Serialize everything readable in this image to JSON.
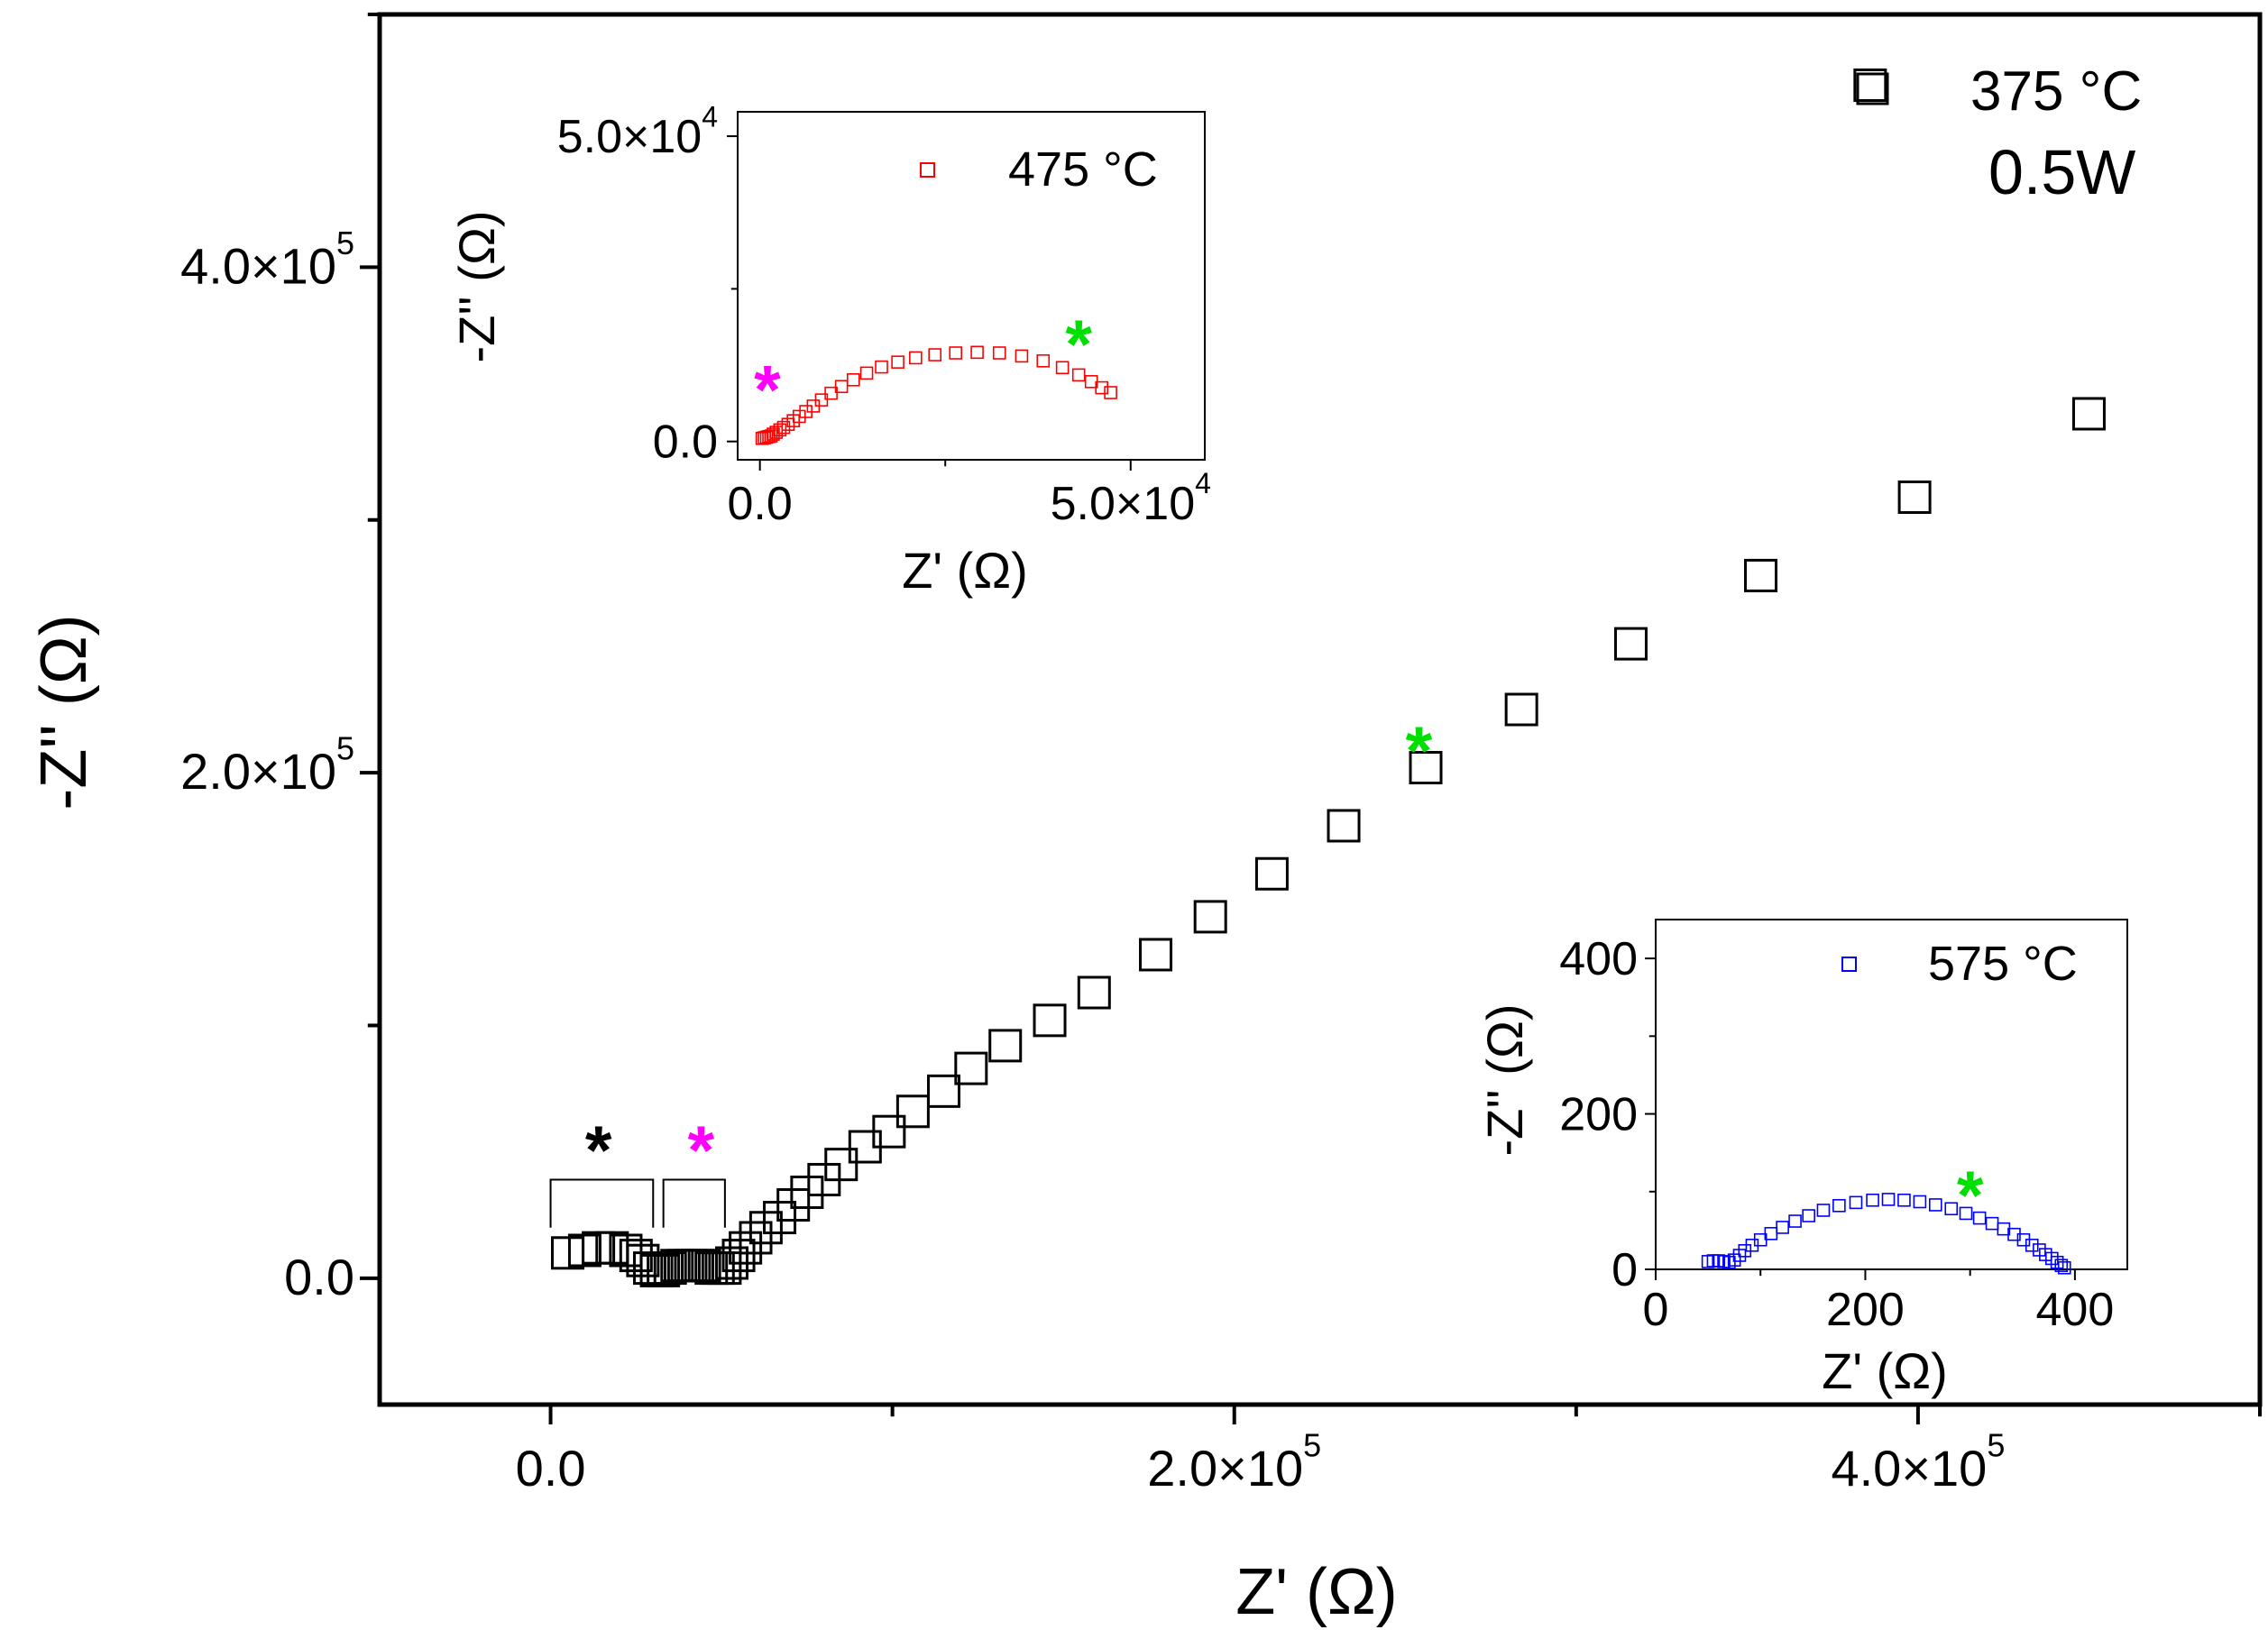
{
  "chart_data": [
    {
      "id": "main",
      "type": "scatter",
      "title": "",
      "xlabel": "Z' (Ω)",
      "ylabel": "-Z'' (Ω)",
      "xlim": [
        -50000,
        500000
      ],
      "ylim": [
        -50000,
        500000
      ],
      "xticks": [
        0,
        200000,
        400000
      ],
      "xtick_labels": [
        "0.0",
        "2.0×10",
        "4.0×10"
      ],
      "xtick_exps": [
        "",
        "5",
        "5"
      ],
      "yticks": [
        0,
        200000,
        400000
      ],
      "ytick_labels": [
        "0.0",
        "2.0×10",
        "4.0×10"
      ],
      "ytick_exps": [
        "",
        "5",
        "5"
      ],
      "legend": {
        "label": "375 °C",
        "sublabel": "0.5W",
        "position": "top-right"
      },
      "marker_color": "#000000",
      "series": [
        {
          "name": "375 °C",
          "points": [
            [
              5000,
              10000
            ],
            [
              10000,
              11000
            ],
            [
              14000,
              12000
            ],
            [
              18000,
              12000
            ],
            [
              22000,
              11000
            ],
            [
              25000,
              9000
            ],
            [
              27000,
              7000
            ],
            [
              29000,
              4000
            ],
            [
              31000,
              3000
            ],
            [
              33000,
              3000
            ],
            [
              35000,
              4000
            ],
            [
              37000,
              5000
            ],
            [
              39000,
              5000
            ],
            [
              41000,
              5000
            ],
            [
              43000,
              5000
            ],
            [
              45000,
              5000
            ],
            [
              47000,
              4000
            ],
            [
              49000,
              4000
            ],
            [
              51000,
              4000
            ],
            [
              53000,
              6000
            ],
            [
              55000,
              9000
            ],
            [
              57000,
              12000
            ],
            [
              60000,
              16000
            ],
            [
              63000,
              20000
            ],
            [
              67000,
              24000
            ],
            [
              71000,
              29000
            ],
            [
              75000,
              34000
            ],
            [
              80000,
              39000
            ],
            [
              85000,
              45000
            ],
            [
              92000,
              52000
            ],
            [
              99000,
              58000
            ],
            [
              106000,
              66000
            ],
            [
              115000,
              74000
            ],
            [
              123000,
              83000
            ],
            [
              133000,
              92000
            ],
            [
              146000,
              102000
            ],
            [
              159000,
              113000
            ],
            [
              177000,
              128000
            ],
            [
              193000,
              143000
            ],
            [
              211000,
              160000
            ],
            [
              232000,
              179000
            ],
            [
              256000,
              202000
            ],
            [
              284000,
              225000
            ],
            [
              316000,
              251000
            ],
            [
              354000,
              278000
            ],
            [
              399000,
              309000
            ],
            [
              450000,
              342000
            ],
            [
              386000,
              472000
            ]
          ]
        }
      ],
      "annotations": [
        {
          "text": "*",
          "color": "#000000",
          "x": 14000,
          "y": 52000
        },
        {
          "text": "*",
          "color": "#ff00ff",
          "x": 44000,
          "y": 52000
        },
        {
          "text": "*",
          "color": "#00e000",
          "x": 254000,
          "y": 210000
        }
      ],
      "brackets": [
        {
          "x0": 0,
          "x1": 30000,
          "y_top": 39000,
          "y_bottom": 20000
        },
        {
          "x0": 33000,
          "x1": 51000,
          "y_top": 39000,
          "y_bottom": 20000
        }
      ]
    },
    {
      "id": "inset-475",
      "type": "scatter",
      "xlabel": "Z' (Ω)",
      "ylabel": "-Z'' (Ω)",
      "xlim": [
        -3000,
        60000
      ],
      "ylim": [
        -3000,
        54000
      ],
      "xticks": [
        0,
        50000
      ],
      "xtick_labels": [
        "0.0",
        "5.0×10"
      ],
      "xtick_exps": [
        "",
        "4"
      ],
      "yticks": [
        0,
        50000
      ],
      "ytick_labels": [
        "0.0",
        "5.0×10"
      ],
      "ytick_exps": [
        "",
        "4"
      ],
      "legend": {
        "label": "475 °C",
        "position": "top-center"
      },
      "marker_color": "#ff0000",
      "series": [
        {
          "name": "475 °C",
          "points": [
            [
              300,
              500
            ],
            [
              600,
              600
            ],
            [
              900,
              700
            ],
            [
              1200,
              800
            ],
            [
              1500,
              900
            ],
            [
              1800,
              1200
            ],
            [
              2200,
              1500
            ],
            [
              2700,
              1900
            ],
            [
              3200,
              2300
            ],
            [
              3800,
              2800
            ],
            [
              4500,
              3400
            ],
            [
              5300,
              4100
            ],
            [
              6200,
              4900
            ],
            [
              7200,
              5800
            ],
            [
              8300,
              6800
            ],
            [
              9600,
              7900
            ],
            [
              11000,
              9000
            ],
            [
              12600,
              10100
            ],
            [
              14400,
              11200
            ],
            [
              16400,
              12200
            ],
            [
              18600,
              13000
            ],
            [
              21000,
              13700
            ],
            [
              23600,
              14200
            ],
            [
              26400,
              14500
            ],
            [
              29300,
              14600
            ],
            [
              32300,
              14500
            ],
            [
              35300,
              14000
            ],
            [
              38200,
              13200
            ],
            [
              40800,
              12100
            ],
            [
              43000,
              10900
            ],
            [
              44700,
              9800
            ],
            [
              46100,
              8800
            ],
            [
              47300,
              8000
            ]
          ]
        }
      ],
      "annotations": [
        {
          "text": "*",
          "color": "#ff00ff",
          "x": 1000,
          "y": 9000
        },
        {
          "text": "*",
          "color": "#00e000",
          "x": 43000,
          "y": 16500
        }
      ]
    },
    {
      "id": "inset-575",
      "type": "scatter",
      "xlabel": "Z' (Ω)",
      "ylabel": "-Z'' (Ω)",
      "xlim": [
        0,
        450
      ],
      "ylim": [
        0,
        450
      ],
      "xticks": [
        0,
        200,
        400
      ],
      "xtick_labels": [
        "0",
        "200",
        "400"
      ],
      "yticks": [
        0,
        200,
        400
      ],
      "ytick_labels": [
        "0",
        "200",
        "400"
      ],
      "legend": {
        "label": "575 °C",
        "position": "top-right"
      },
      "marker_color": "#0000ff",
      "series": [
        {
          "name": "575 °C",
          "points": [
            [
              50,
              10
            ],
            [
              55,
              11
            ],
            [
              60,
              11
            ],
            [
              65,
              10
            ],
            [
              70,
              9
            ],
            [
              75,
              12
            ],
            [
              80,
              18
            ],
            [
              85,
              24
            ],
            [
              92,
              31
            ],
            [
              100,
              38
            ],
            [
              110,
              46
            ],
            [
              121,
              54
            ],
            [
              133,
              62
            ],
            [
              146,
              69
            ],
            [
              160,
              76
            ],
            [
              175,
              82
            ],
            [
              191,
              86
            ],
            [
              207,
              89
            ],
            [
              222,
              90
            ],
            [
              237,
              89
            ],
            [
              252,
              87
            ],
            [
              267,
              83
            ],
            [
              282,
              78
            ],
            [
              296,
              72
            ],
            [
              309,
              66
            ],
            [
              321,
              59
            ],
            [
              332,
              52
            ],
            [
              342,
              45
            ],
            [
              351,
              38
            ],
            [
              359,
              31
            ],
            [
              366,
              25
            ],
            [
              372,
              19
            ],
            [
              378,
              14
            ],
            [
              383,
              9
            ],
            [
              387,
              5
            ],
            [
              390,
              2
            ]
          ]
        }
      ],
      "annotations": [
        {
          "text": "*",
          "color": "#00e000",
          "x": 300,
          "y": 100
        }
      ]
    }
  ]
}
